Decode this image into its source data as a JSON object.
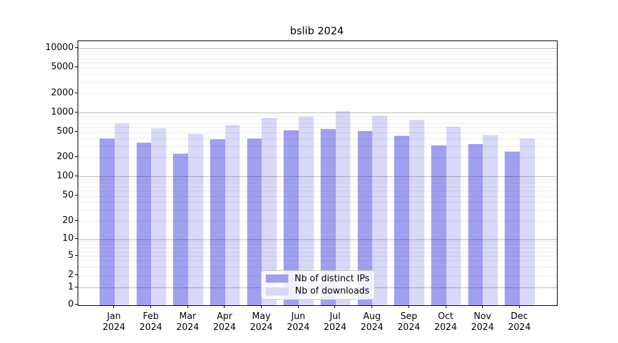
{
  "title": "bslib 2024",
  "colors": {
    "distinct_ips_bar": "#a0a0f0",
    "downloads_bar": "#d8d8f8",
    "grid_major": "#bdbdbd",
    "grid_minor": "#ebebeb",
    "axis": "#000000",
    "background": "#ffffff"
  },
  "y_axis": {
    "ticks": [
      {
        "value": 10000,
        "label": "10000"
      },
      {
        "value": 5000,
        "label": "5000"
      },
      {
        "value": 2000,
        "label": "2000"
      },
      {
        "value": 1000,
        "label": "1000"
      },
      {
        "value": 500,
        "label": "500"
      },
      {
        "value": 200,
        "label": "200"
      },
      {
        "value": 100,
        "label": "100"
      },
      {
        "value": 50,
        "label": "50"
      },
      {
        "value": 20,
        "label": "20"
      },
      {
        "value": 10,
        "label": "10"
      },
      {
        "value": 5,
        "label": "5"
      },
      {
        "value": 2,
        "label": "2"
      },
      {
        "value": 1,
        "label": "1"
      },
      {
        "value": 0,
        "label": "0"
      }
    ]
  },
  "x_axis": {
    "months": [
      {
        "line1": "Jan",
        "line2": "2024"
      },
      {
        "line1": "Feb",
        "line2": "2024"
      },
      {
        "line1": "Mar",
        "line2": "2024"
      },
      {
        "line1": "Apr",
        "line2": "2024"
      },
      {
        "line1": "May",
        "line2": "2024"
      },
      {
        "line1": "Jun",
        "line2": "2024"
      },
      {
        "line1": "Jul",
        "line2": "2024"
      },
      {
        "line1": "Aug",
        "line2": "2024"
      },
      {
        "line1": "Sep",
        "line2": "2024"
      },
      {
        "line1": "Oct",
        "line2": "2024"
      },
      {
        "line1": "Nov",
        "line2": "2024"
      },
      {
        "line1": "Dec",
        "line2": "2024"
      }
    ]
  },
  "chart_data": {
    "type": "bar",
    "title": "bslib 2024",
    "categories": [
      "Jan 2024",
      "Feb 2024",
      "Mar 2024",
      "Apr 2024",
      "May 2024",
      "Jun 2024",
      "Jul 2024",
      "Aug 2024",
      "Sep 2024",
      "Oct 2024",
      "Nov 2024",
      "Dec 2024"
    ],
    "series": [
      {
        "name": "Nb of distinct IPs",
        "color": "#a0a0f0",
        "values": [
          395,
          345,
          228,
          388,
          398,
          535,
          566,
          515,
          440,
          310,
          322,
          246
        ]
      },
      {
        "name": "Nb of downloads",
        "color": "#d8d8f8",
        "values": [
          681,
          578,
          468,
          650,
          826,
          866,
          1062,
          895,
          772,
          600,
          452,
          400
        ]
      }
    ],
    "yscale": "log (1-2-5 ticks, linear segment 0-1)",
    "ylim": [
      0,
      12900
    ],
    "ytick_values": [
      0,
      1,
      2,
      5,
      10,
      20,
      50,
      100,
      200,
      500,
      1000,
      2000,
      5000,
      10000
    ],
    "grid": "on",
    "legend_position": "lower center"
  }
}
